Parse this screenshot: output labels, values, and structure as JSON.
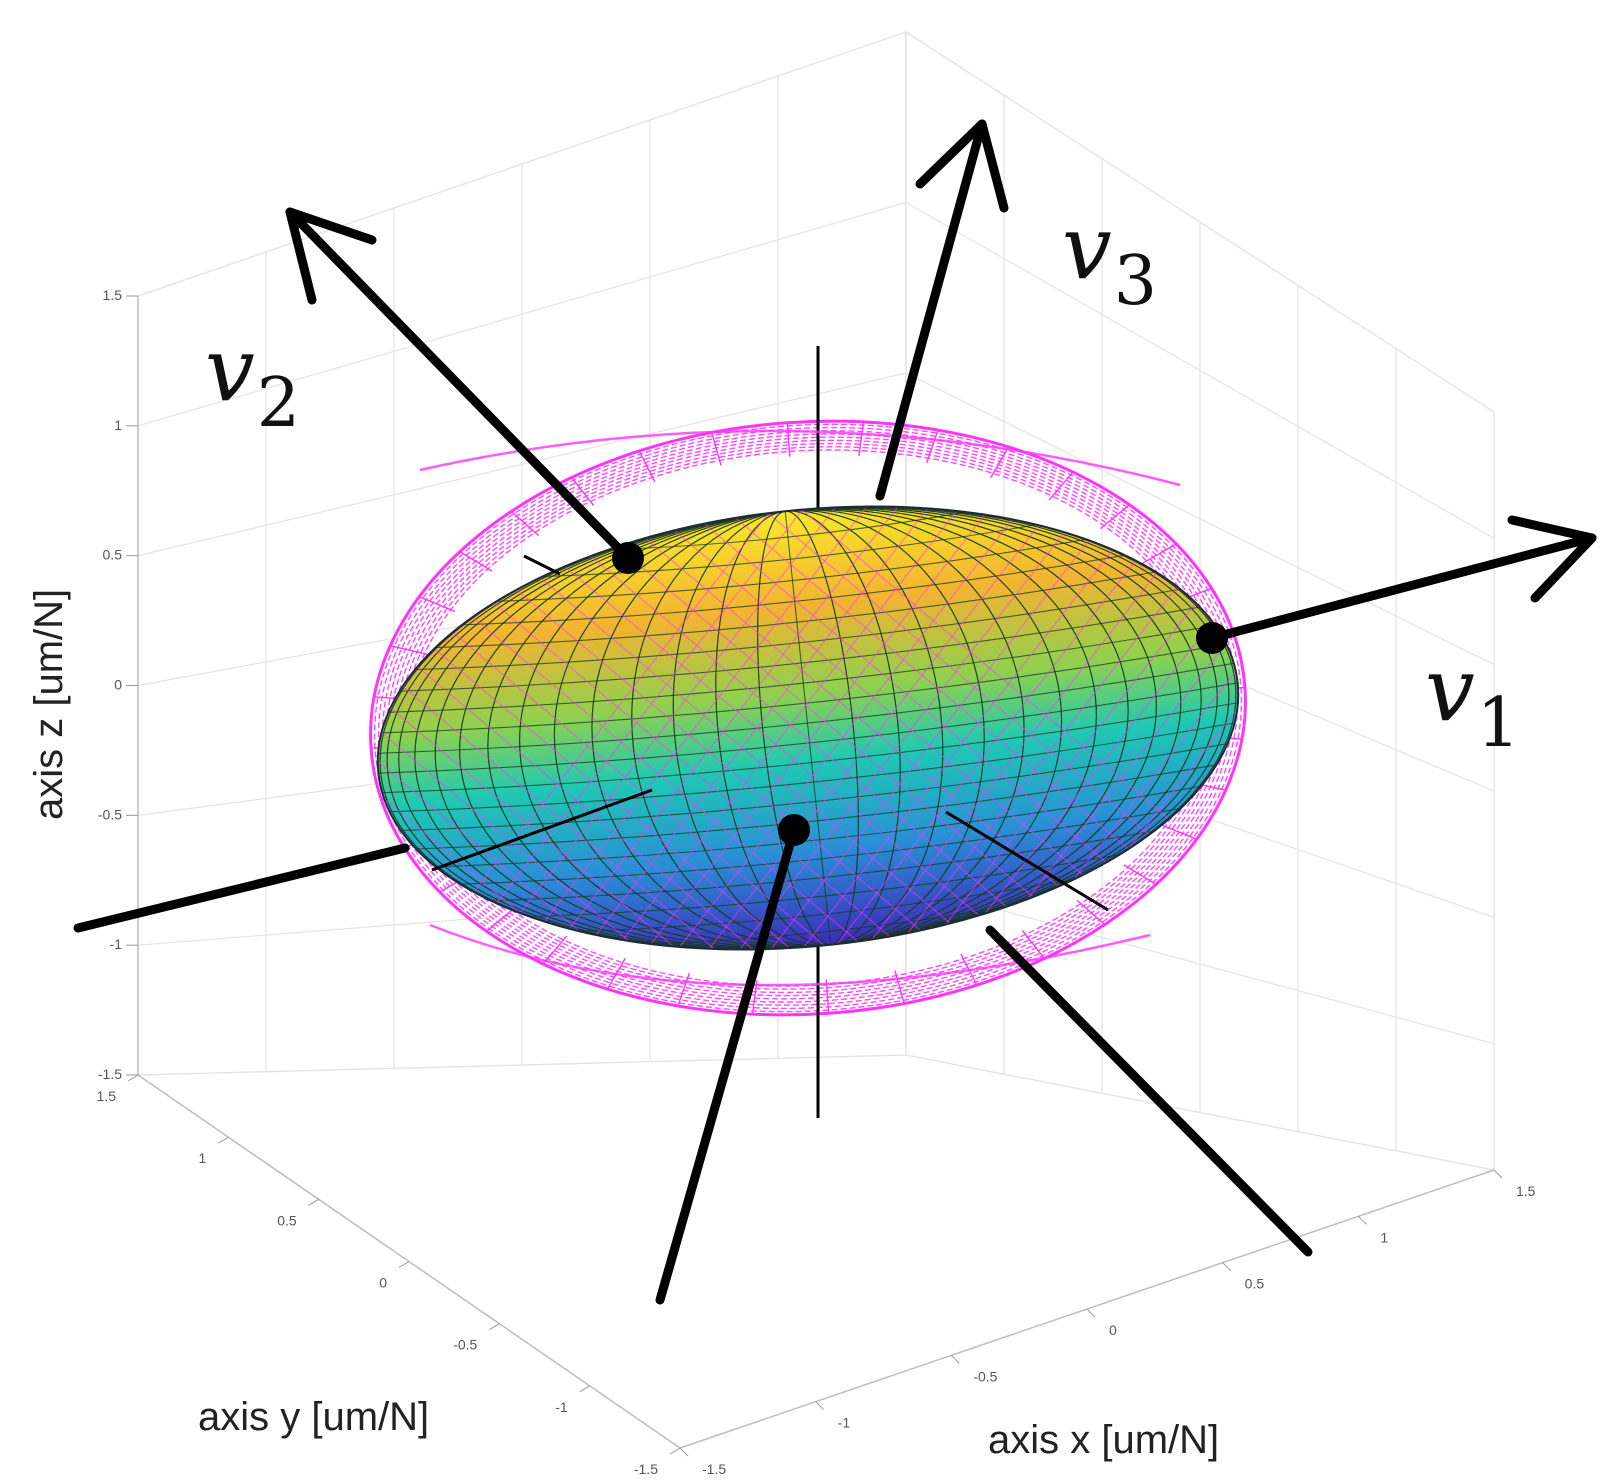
{
  "chart_data": {
    "type": "surface3d",
    "description_series": [
      {
        "kind": "solid-ellipsoid",
        "colormap": [
          "#3b2bb8",
          "#2a8fd6",
          "#1fc8b4",
          "#8fd14f",
          "#f2b431",
          "#f9e82a"
        ]
      },
      {
        "kind": "wireframe-ellipsoid",
        "color": "#ff33ff"
      }
    ],
    "axes": {
      "x": {
        "label": "axis x [um/N]",
        "ticks": [
          "-1.5",
          "-1",
          "-0.5",
          "0",
          "0.5",
          "1",
          "1.5"
        ],
        "lim": [
          -1.5,
          1.5
        ]
      },
      "y": {
        "label": "axis y [um/N]",
        "ticks": [
          "-1.5",
          "-1",
          "-0.5",
          "0",
          "0.5",
          "1",
          "1.5"
        ],
        "lim": [
          -1.5,
          1.5
        ]
      },
      "z": {
        "label": "axis z [um/N]",
        "ticks": [
          "-1.5",
          "-1",
          "-0.5",
          "0",
          "0.5",
          "1",
          "1.5"
        ],
        "lim": [
          -1.5,
          1.5
        ]
      }
    },
    "grid": true,
    "principal_vectors": [
      {
        "name": "v",
        "sub": "1"
      },
      {
        "name": "v",
        "sub": "2"
      },
      {
        "name": "v",
        "sub": "3"
      }
    ]
  }
}
